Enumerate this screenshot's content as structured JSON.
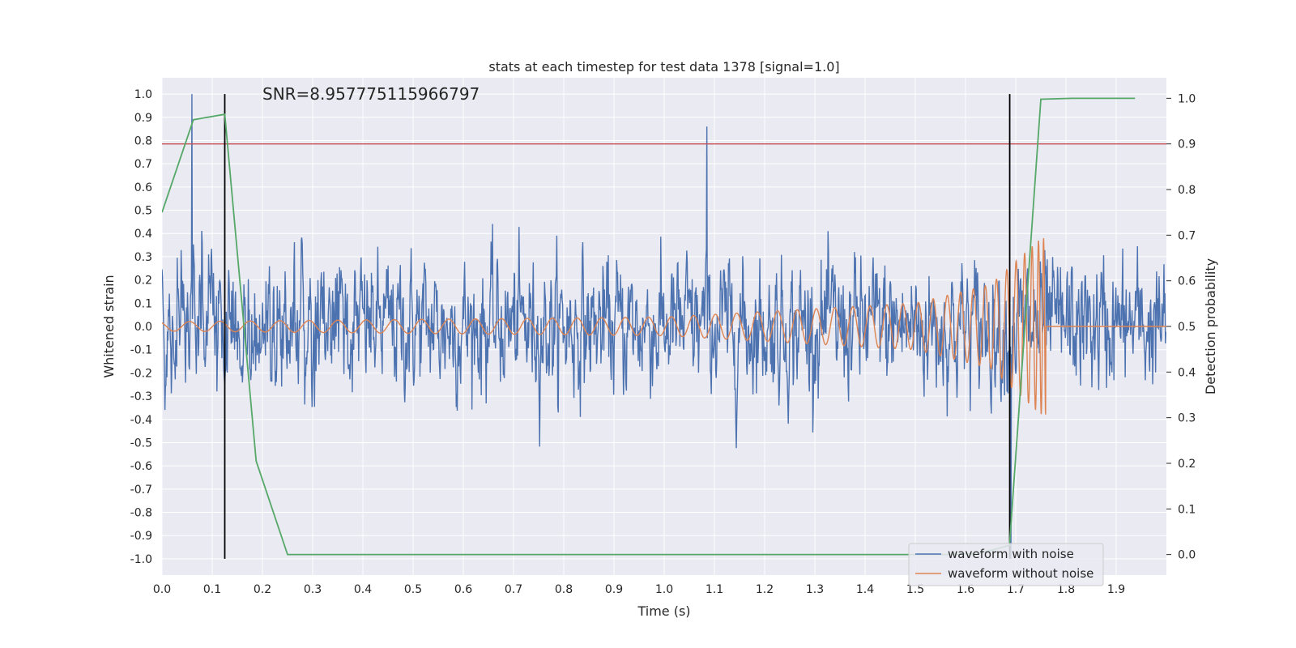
{
  "chart_data": {
    "type": "line",
    "title": "stats at each timestep for test data 1378 [signal=1.0]",
    "annotation": "SNR=8.957775115966797",
    "xlabel": "Time (s)",
    "ylabel_left": "Whitened strain",
    "ylabel_right": "Detection probability",
    "xlim": [
      0.0,
      2.0
    ],
    "ylim_left": [
      -1.07,
      1.07
    ],
    "ylim_right": [
      -0.045,
      1.045
    ],
    "x_ticks": [
      "0.0",
      "0.1",
      "0.2",
      "0.3",
      "0.4",
      "0.5",
      "0.6",
      "0.7",
      "0.8",
      "0.9",
      "1.0",
      "1.1",
      "1.2",
      "1.3",
      "1.4",
      "1.5",
      "1.6",
      "1.7",
      "1.8",
      "1.9"
    ],
    "y_left_ticks": [
      "1.0",
      "0.9",
      "0.8",
      "0.7",
      "0.6",
      "0.5",
      "0.4",
      "0.3",
      "0.2",
      "0.1",
      "0.0",
      "-0.1",
      "-0.2",
      "-0.3",
      "-0.4",
      "-0.5",
      "-0.6",
      "-0.7",
      "-0.8",
      "-0.9",
      "-1.0"
    ],
    "y_right_ticks": [
      "1.0",
      "0.9",
      "0.8",
      "0.7",
      "0.6",
      "0.5",
      "0.4",
      "0.3",
      "0.2",
      "0.1",
      "0.0"
    ],
    "grid": true,
    "legend_position": "lower-right",
    "threshold": {
      "axis": "right",
      "value": 0.9,
      "color": "#c44e52"
    },
    "markers": {
      "x": [
        0.125,
        1.688
      ],
      "y_range": [
        -1.0,
        1.0
      ],
      "color": "#000000"
    },
    "series": [
      {
        "name": "waveform with noise",
        "axis": "left",
        "color": "#4c72b0",
        "kind": "noisy-strain",
        "amplitude_envelope": 0.6,
        "notable_peaks": [
          {
            "x": 0.06,
            "y": 1.0
          },
          {
            "x": 1.085,
            "y": 0.86
          },
          {
            "x": 1.69,
            "y": -1.0
          }
        ]
      },
      {
        "name": "waveform without noise",
        "axis": "left",
        "color": "#dd8452",
        "kind": "chirp",
        "x_end": 1.76,
        "amplitude_points": [
          [
            0.0,
            0.02
          ],
          [
            1.0,
            0.04
          ],
          [
            1.5,
            0.1
          ],
          [
            1.65,
            0.18
          ],
          [
            1.75,
            0.38
          ]
        ]
      },
      {
        "name": "detection probability",
        "axis": "right",
        "color": "#55a868",
        "x": [
          0.0,
          0.0625,
          0.125,
          0.1875,
          0.25,
          0.3125,
          0.375,
          0.4375,
          0.5,
          0.5625,
          0.625,
          0.6875,
          0.75,
          0.8125,
          0.875,
          0.9375,
          1.0,
          1.0625,
          1.125,
          1.1875,
          1.25,
          1.3125,
          1.375,
          1.4375,
          1.5,
          1.5625,
          1.625,
          1.6875,
          1.75,
          1.8125,
          1.875,
          1.9375
        ],
        "values": [
          0.75,
          0.953,
          0.965,
          0.205,
          0.0,
          0.0,
          0.0,
          0.0,
          0.0,
          0.0,
          0.0,
          0.0,
          0.0,
          0.0,
          0.0,
          0.0,
          0.0,
          0.0,
          0.0,
          0.0,
          0.0,
          0.0,
          0.0,
          0.0,
          0.0,
          0.0,
          0.002,
          0.02,
          0.998,
          1.0,
          1.0,
          1.0
        ]
      }
    ],
    "legend": [
      "waveform with noise",
      "waveform without noise"
    ]
  },
  "colors": {
    "plot_background": "#eaeaf2",
    "grid": "#ffffff",
    "text": "#262626"
  }
}
